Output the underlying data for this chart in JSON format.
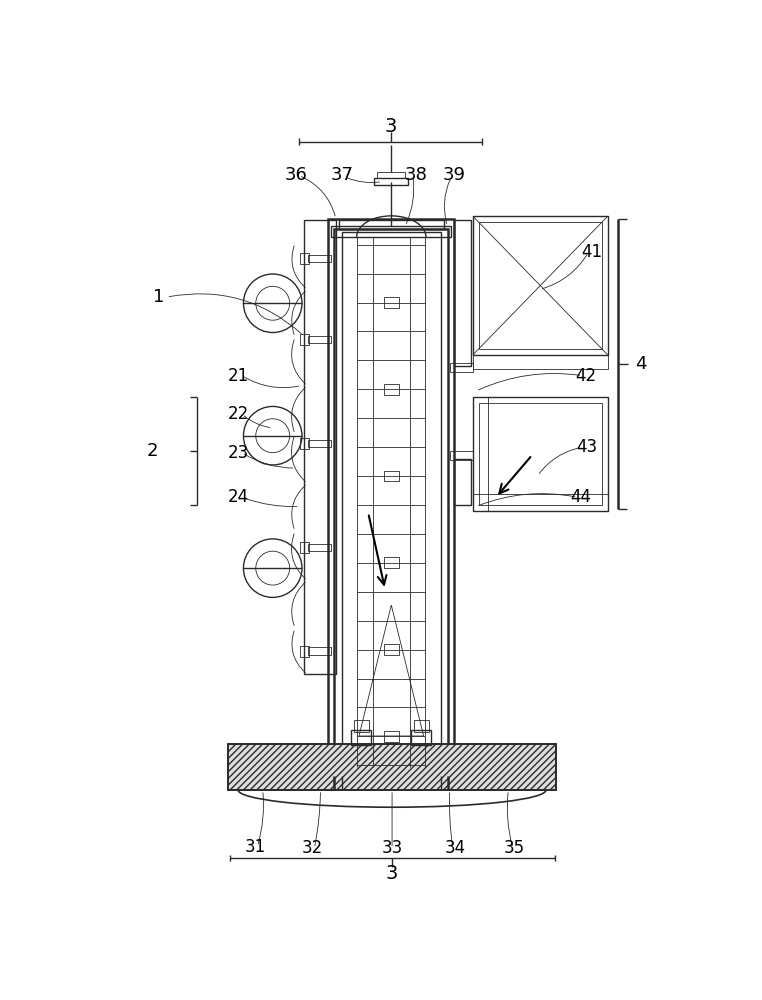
{
  "bg_color": "#ffffff",
  "line_color": "#2a2a2a",
  "lw_main": 1.2,
  "lw_thin": 0.6,
  "lw_thick": 1.8,
  "lw_med": 1.0
}
